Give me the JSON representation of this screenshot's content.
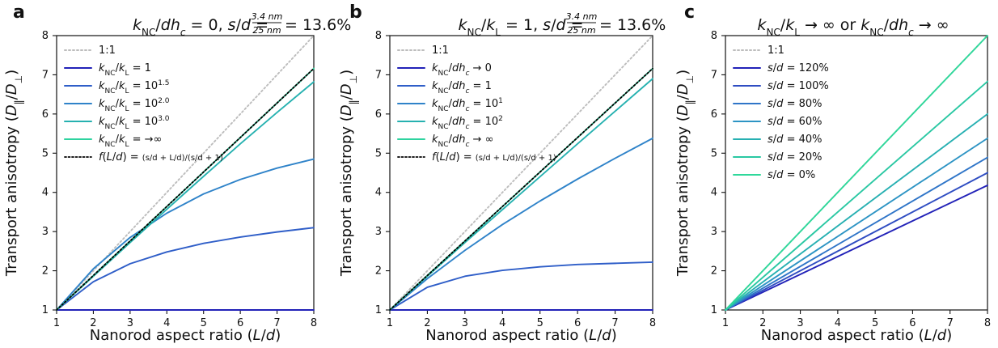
{
  "chart_data": [
    {
      "panel": "a",
      "type": "line",
      "title": "k_NC/dh_c = 0, s/d = 3.4 nm / 25 nm = 13.6%",
      "xlabel": "Nanorod aspect ratio (L/d)",
      "ylabel": "Transport anisotropy (D‖/D⊥)",
      "xlim": [
        1,
        8
      ],
      "ylim": [
        1,
        8
      ],
      "xticks": [
        1,
        2,
        3,
        4,
        5,
        6,
        7,
        8
      ],
      "yticks": [
        1,
        2,
        3,
        4,
        5,
        6,
        7,
        8
      ],
      "grid": false,
      "legend_position": "top-left",
      "series": [
        {
          "name": "1:1",
          "color": "#bdbdbd",
          "dash": "dotted",
          "x": [
            1,
            2,
            3,
            4,
            5,
            6,
            7,
            8
          ],
          "y": [
            1,
            2,
            3,
            4,
            5,
            6,
            7,
            8
          ]
        },
        {
          "name": "k_NC/k_L = 1",
          "color": "#2222b8",
          "dash": "solid",
          "x": [
            1,
            2,
            3,
            4,
            5,
            6,
            7,
            8
          ],
          "y": [
            1,
            1,
            1,
            1,
            1,
            1,
            1,
            1
          ]
        },
        {
          "name": "k_NC/k_L = 10^1.5",
          "color": "#2f5ec8",
          "dash": "solid",
          "x": [
            1,
            2,
            3,
            4,
            5,
            6,
            7,
            8
          ],
          "y": [
            1,
            1.72,
            2.18,
            2.48,
            2.7,
            2.86,
            2.99,
            3.1
          ]
        },
        {
          "name": "k_NC/k_L = 10^2.0",
          "color": "#2f83c9",
          "dash": "solid",
          "x": [
            1,
            2,
            3,
            4,
            5,
            6,
            7,
            8
          ],
          "y": [
            1,
            2.05,
            2.85,
            3.47,
            3.96,
            4.33,
            4.62,
            4.85
          ]
        },
        {
          "name": "k_NC/k_L = 10^3.0",
          "color": "#26b1b0",
          "dash": "solid",
          "x": [
            1,
            2,
            3,
            4,
            5,
            6,
            7,
            8
          ],
          "y": [
            1,
            1.86,
            2.72,
            3.57,
            4.41,
            5.24,
            6.04,
            6.82
          ]
        },
        {
          "name": "k_NC/k_L = →∞",
          "color": "#2ed39f",
          "dash": "solid",
          "x": [
            1,
            2,
            3,
            4,
            5,
            6,
            7,
            8
          ],
          "y": [
            1,
            1.88,
            2.76,
            3.64,
            4.52,
            5.4,
            6.28,
            7.16
          ]
        },
        {
          "name": "f(L/d) = (s/d + L/d) / (s/d + 1)",
          "color": "#000000",
          "dash": "dotted",
          "x": [
            1,
            2,
            3,
            4,
            5,
            6,
            7,
            8
          ],
          "y": [
            1,
            1.88,
            2.76,
            3.64,
            4.52,
            5.4,
            6.28,
            7.16
          ]
        }
      ]
    },
    {
      "panel": "b",
      "type": "line",
      "title": "k_NC/k_L = 1, s/d = 3.4 nm / 25 nm = 13.6%",
      "xlabel": "Nanorod aspect ratio (L/d)",
      "ylabel": "Transport anisotropy (D‖/D⊥)",
      "xlim": [
        1,
        8
      ],
      "ylim": [
        1,
        8
      ],
      "xticks": [
        1,
        2,
        3,
        4,
        5,
        6,
        7,
        8
      ],
      "yticks": [
        1,
        2,
        3,
        4,
        5,
        6,
        7,
        8
      ],
      "grid": false,
      "legend_position": "top-left",
      "series": [
        {
          "name": "1:1",
          "color": "#bdbdbd",
          "dash": "dotted",
          "x": [
            1,
            2,
            3,
            4,
            5,
            6,
            7,
            8
          ],
          "y": [
            1,
            2,
            3,
            4,
            5,
            6,
            7,
            8
          ]
        },
        {
          "name": "k_NC/dh_c → 0",
          "color": "#2222b8",
          "dash": "solid",
          "x": [
            1,
            2,
            3,
            4,
            5,
            6,
            7,
            8
          ],
          "y": [
            1,
            1,
            1,
            1,
            1,
            1,
            1,
            1
          ]
        },
        {
          "name": "k_NC/dh_c = 1",
          "color": "#2f5ec8",
          "dash": "solid",
          "x": [
            1,
            2,
            3,
            4,
            5,
            6,
            7,
            8
          ],
          "y": [
            1,
            1.58,
            1.86,
            2.01,
            2.1,
            2.16,
            2.19,
            2.22
          ]
        },
        {
          "name": "k_NC/dh_c = 10^1",
          "color": "#2f83c9",
          "dash": "solid",
          "x": [
            1,
            2,
            3,
            4,
            5,
            6,
            7,
            8
          ],
          "y": [
            1,
            1.8,
            2.52,
            3.18,
            3.78,
            4.34,
            4.87,
            5.38
          ]
        },
        {
          "name": "k_NC/dh_c = 10^2",
          "color": "#26b1b0",
          "dash": "solid",
          "x": [
            1,
            2,
            3,
            4,
            5,
            6,
            7,
            8
          ],
          "y": [
            1,
            1.86,
            2.72,
            3.56,
            4.4,
            5.24,
            6.07,
            6.9
          ]
        },
        {
          "name": "k_NC/dh_c → ∞",
          "color": "#2ed39f",
          "dash": "solid",
          "x": [
            1,
            2,
            3,
            4,
            5,
            6,
            7,
            8
          ],
          "y": [
            1,
            1.88,
            2.76,
            3.64,
            4.52,
            5.4,
            6.28,
            7.16
          ]
        },
        {
          "name": "f(L/d) = (s/d + L/d) / (s/d + 1)",
          "color": "#000000",
          "dash": "dotted",
          "x": [
            1,
            2,
            3,
            4,
            5,
            6,
            7,
            8
          ],
          "y": [
            1,
            1.88,
            2.76,
            3.64,
            4.52,
            5.4,
            6.28,
            7.16
          ]
        }
      ]
    },
    {
      "panel": "c",
      "type": "line",
      "title": "k_NC/k_L → ∞ or k_NC/dh_c → ∞",
      "xlabel": "Nanorod aspect ratio (L/d)",
      "ylabel": "Transport anisotropy (D‖/D⊥)",
      "xlim": [
        1,
        8
      ],
      "ylim": [
        1,
        8
      ],
      "xticks": [
        1,
        2,
        3,
        4,
        5,
        6,
        7,
        8
      ],
      "yticks": [
        1,
        2,
        3,
        4,
        5,
        6,
        7,
        8
      ],
      "grid": false,
      "legend_position": "top-left",
      "series": [
        {
          "name": "1:1",
          "color": "#bdbdbd",
          "dash": "dotted",
          "x": [
            1,
            8
          ],
          "y": [
            1,
            8
          ]
        },
        {
          "name": "s/d = 120%",
          "color": "#2222b8",
          "dash": "solid",
          "x": [
            1,
            8
          ],
          "y": [
            1,
            4.18
          ]
        },
        {
          "name": "s/d = 100%",
          "color": "#2f4dc2",
          "dash": "solid",
          "x": [
            1,
            8
          ],
          "y": [
            1,
            4.5
          ]
        },
        {
          "name": "s/d = 80%",
          "color": "#2f75c8",
          "dash": "solid",
          "x": [
            1,
            8
          ],
          "y": [
            1,
            4.89
          ]
        },
        {
          "name": "s/d = 60%",
          "color": "#2d94c4",
          "dash": "solid",
          "x": [
            1,
            8
          ],
          "y": [
            1,
            5.38
          ]
        },
        {
          "name": "s/d = 40%",
          "color": "#27b0b2",
          "dash": "solid",
          "x": [
            1,
            8
          ],
          "y": [
            1,
            6
          ]
        },
        {
          "name": "s/d = 20%",
          "color": "#2ac8a3",
          "dash": "solid",
          "x": [
            1,
            8
          ],
          "y": [
            1,
            6.83
          ]
        },
        {
          "name": "s/d = 0%",
          "color": "#2fd89b",
          "dash": "solid",
          "x": [
            1,
            8
          ],
          "y": [
            1,
            8
          ]
        }
      ]
    }
  ]
}
